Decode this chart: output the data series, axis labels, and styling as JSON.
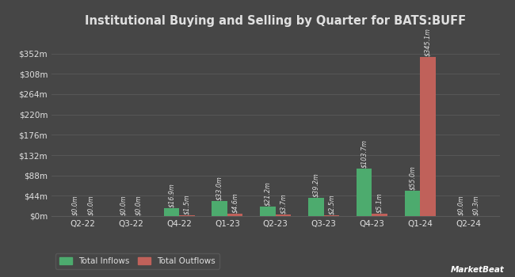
{
  "title": "Institutional Buying and Selling by Quarter for BATS:BUFF",
  "quarters": [
    "Q2-22",
    "Q3-22",
    "Q4-22",
    "Q1-23",
    "Q2-23",
    "Q3-23",
    "Q4-23",
    "Q1-24",
    "Q2-24"
  ],
  "inflows": [
    0.0,
    0.0,
    16.9,
    33.0,
    21.2,
    39.2,
    103.7,
    55.0,
    0.0
  ],
  "outflows": [
    0.0,
    0.0,
    1.5,
    4.6,
    3.7,
    2.5,
    5.1,
    345.1,
    0.3
  ],
  "inflow_labels": [
    "$0.0m",
    "$0.0m",
    "$16.9m",
    "$33.0m",
    "$21.2m",
    "$39.2m",
    "$103.7m",
    "$55.0m",
    "$0.0m"
  ],
  "outflow_labels": [
    "$0.0m",
    "$0.0m",
    "$1.5m",
    "$4.6m",
    "$3.7m",
    "$2.5m",
    "$5.1m",
    "$345.1m",
    "$0.3m"
  ],
  "inflow_color": "#4dab6e",
  "outflow_color": "#c0615a",
  "background_color": "#464646",
  "grid_color": "#5a5a5a",
  "text_color": "#e0e0e0",
  "bar_width": 0.32,
  "ylim": [
    0,
    396
  ],
  "yticks": [
    0,
    44,
    88,
    132,
    176,
    220,
    264,
    308,
    352
  ],
  "ytick_labels": [
    "$0m",
    "$44m",
    "$88m",
    "$132m",
    "$176m",
    "$220m",
    "$264m",
    "$308m",
    "$352m"
  ],
  "legend_inflow": "Total Inflows",
  "legend_outflow": "Total Outflows"
}
